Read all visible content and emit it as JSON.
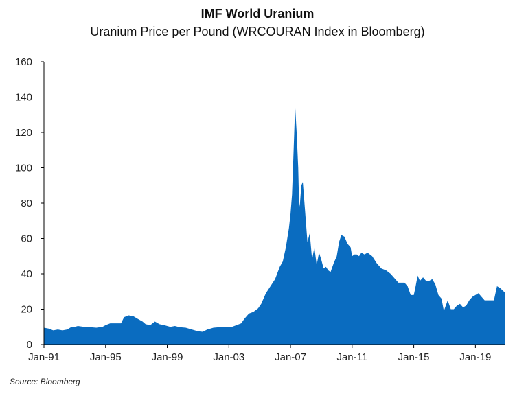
{
  "chart_data": {
    "type": "area",
    "title": "IMF World Uranium",
    "subtitle": "Uranium Price per Pound (WRCOURAN Index in Bloomberg)",
    "xlabel": "",
    "ylabel": "",
    "source": "Source: Bloomberg",
    "xlim": [
      1991.0,
      2020.9
    ],
    "ylim": [
      0,
      160
    ],
    "y_ticks": [
      0,
      20,
      40,
      60,
      80,
      100,
      120,
      140,
      160
    ],
    "x_ticks": [
      {
        "label": "Jan-91",
        "value": 1991.0
      },
      {
        "label": "Jan-95",
        "value": 1995.0
      },
      {
        "label": "Jan-99",
        "value": 1999.0
      },
      {
        "label": "Jan-03",
        "value": 2003.0
      },
      {
        "label": "Jan-07",
        "value": 2007.0
      },
      {
        "label": "Jan-11",
        "value": 2011.0
      },
      {
        "label": "Jan-15",
        "value": 2015.0
      },
      {
        "label": "Jan-19",
        "value": 2019.0
      }
    ],
    "grid": false,
    "color": "#0a6cc0",
    "series": [
      {
        "x": [
          1991.0,
          1991.3,
          1991.6,
          1991.9,
          1992.2,
          1992.5,
          1992.8,
          1993.0,
          1993.2,
          1993.6,
          1994.0,
          1994.4,
          1994.8,
          1995.0,
          1995.3,
          1995.6,
          1996.0,
          1996.2,
          1996.5,
          1996.8,
          1997.1,
          1997.4,
          1997.6,
          1997.9,
          1998.2,
          1998.5,
          1998.8,
          1999.0,
          1999.2,
          1999.5,
          1999.8,
          2000.2,
          2000.6,
          2001.0,
          2001.3,
          2001.6,
          2002.0,
          2002.4,
          2002.8,
          2003.0,
          2003.2,
          2003.5,
          2003.8,
          2004.0,
          2004.3,
          2004.6,
          2004.9,
          2005.1,
          2005.4,
          2005.7,
          2006.0,
          2006.3,
          2006.5,
          2006.7,
          2006.9,
          2007.0,
          2007.1,
          2007.2,
          2007.3,
          2007.4,
          2007.5,
          2007.55,
          2007.6,
          2007.7,
          2007.8,
          2007.95,
          2008.1,
          2008.25,
          2008.4,
          2008.55,
          2008.7,
          2008.85,
          2009.0,
          2009.15,
          2009.3,
          2009.45,
          2009.6,
          2009.8,
          2010.0,
          2010.15,
          2010.3,
          2010.5,
          2010.7,
          2010.9,
          2011.0,
          2011.15,
          2011.3,
          2011.45,
          2011.6,
          2011.8,
          2012.0,
          2012.3,
          2012.6,
          2012.9,
          2013.2,
          2013.5,
          2013.8,
          2014.0,
          2014.2,
          2014.4,
          2014.6,
          2014.8,
          2015.0,
          2015.1,
          2015.25,
          2015.4,
          2015.6,
          2015.8,
          2016.0,
          2016.2,
          2016.4,
          2016.6,
          2016.8,
          2016.95,
          2017.2,
          2017.4,
          2017.6,
          2017.8,
          2018.0,
          2018.2,
          2018.4,
          2018.6,
          2018.8,
          2019.0,
          2019.2,
          2019.4,
          2019.6,
          2019.8,
          2020.0,
          2020.2,
          2020.4,
          2020.6,
          2020.9
        ],
        "y": [
          9.5,
          9.0,
          8.0,
          8.5,
          8.0,
          8.5,
          10.0,
          10.0,
          10.5,
          10.0,
          9.8,
          9.5,
          10.0,
          11.0,
          12.0,
          12.0,
          12.0,
          15.5,
          16.5,
          16.0,
          14.5,
          13.0,
          11.5,
          11.0,
          13.0,
          11.5,
          11.0,
          10.5,
          10.0,
          10.5,
          9.8,
          9.5,
          8.5,
          7.5,
          7.2,
          8.5,
          9.5,
          9.8,
          9.8,
          10.0,
          10.0,
          11.0,
          12.0,
          14.5,
          17.5,
          18.5,
          20.5,
          23.0,
          29.0,
          33.0,
          37.0,
          44.0,
          47.0,
          55.0,
          66.0,
          74.0,
          85.0,
          110.0,
          135.0,
          120.0,
          100.0,
          82.0,
          78.0,
          90.0,
          92.0,
          75.0,
          58.0,
          63.0,
          48.0,
          55.0,
          45.0,
          52.0,
          48.0,
          43.0,
          44.0,
          42.0,
          41.0,
          46.0,
          50.0,
          58.0,
          62.0,
          61.0,
          57.0,
          55.0,
          50.0,
          51.0,
          51.0,
          50.0,
          52.0,
          51.0,
          52.0,
          50.0,
          46.0,
          43.0,
          42.0,
          40.0,
          37.0,
          35.0,
          35.0,
          35.0,
          33.0,
          28.0,
          28.0,
          32.0,
          39.0,
          36.0,
          38.0,
          36.0,
          36.0,
          37.0,
          34.0,
          28.0,
          26.0,
          19.0,
          25.0,
          20.0,
          20.0,
          22.0,
          23.0,
          21.0,
          22.0,
          25.0,
          27.0,
          28.0,
          29.0,
          27.0,
          25.0,
          25.0,
          25.0,
          25.0,
          33.0,
          32.0,
          29.5
        ]
      }
    ]
  }
}
